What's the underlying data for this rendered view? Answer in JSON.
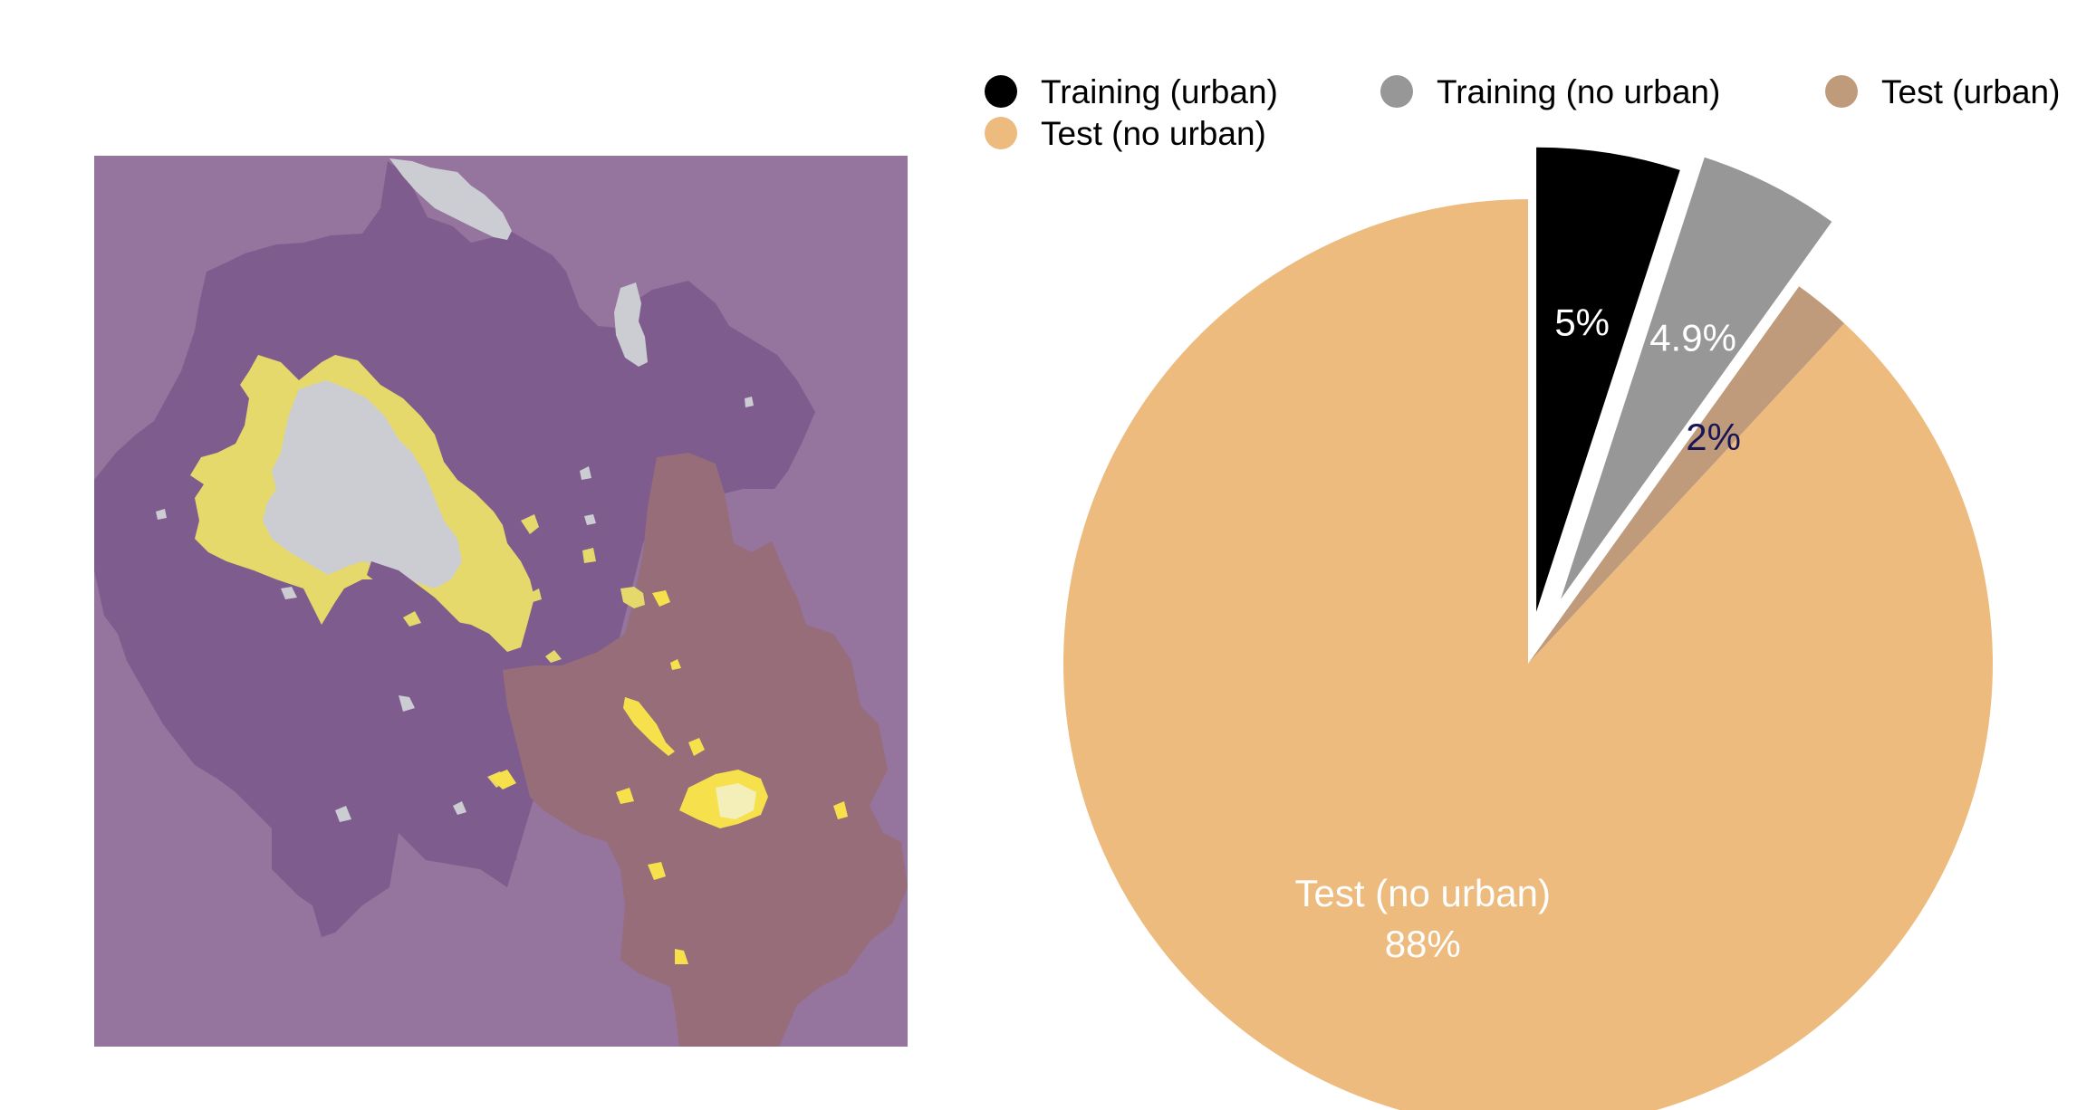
{
  "colors": {
    "map_background": "#95749e",
    "map_region_purple": "#7f5c8e",
    "map_region_brown": "#966d79",
    "map_urban_gray": "#cbcdd3",
    "map_urban_yellow": "#e6d96b",
    "map_urban_bright_yellow": "#f6e14d",
    "map_urban_pale": "#f4efb8"
  },
  "chart_data": {
    "type": "pie",
    "title": "",
    "slices": [
      {
        "name": "Training (urban)",
        "value": 5,
        "label": "5%",
        "color": "#000000",
        "label_color": "#ffffff",
        "exploded": true
      },
      {
        "name": "Training (no urban)",
        "value": 4.9,
        "label": "4.9%",
        "color": "#979797",
        "label_color": "#ffffff",
        "exploded": true
      },
      {
        "name": "Test (urban)",
        "value": 2,
        "label": "2%",
        "color": "#bf9b7b",
        "label_color": "#1a1655",
        "exploded": false
      },
      {
        "name": "Test (no urban)",
        "value": 88,
        "label": "88%",
        "color": "#ecbb7d",
        "label_color": "#ffffff",
        "exploded": false,
        "name_shown_on_slice": true
      }
    ],
    "start_angle": "top (12 o'clock), clockwise",
    "legend_position": "top",
    "legend": [
      "Training (urban)",
      "Training (no urban)",
      "Test (urban)",
      "Test (no urban)"
    ]
  }
}
